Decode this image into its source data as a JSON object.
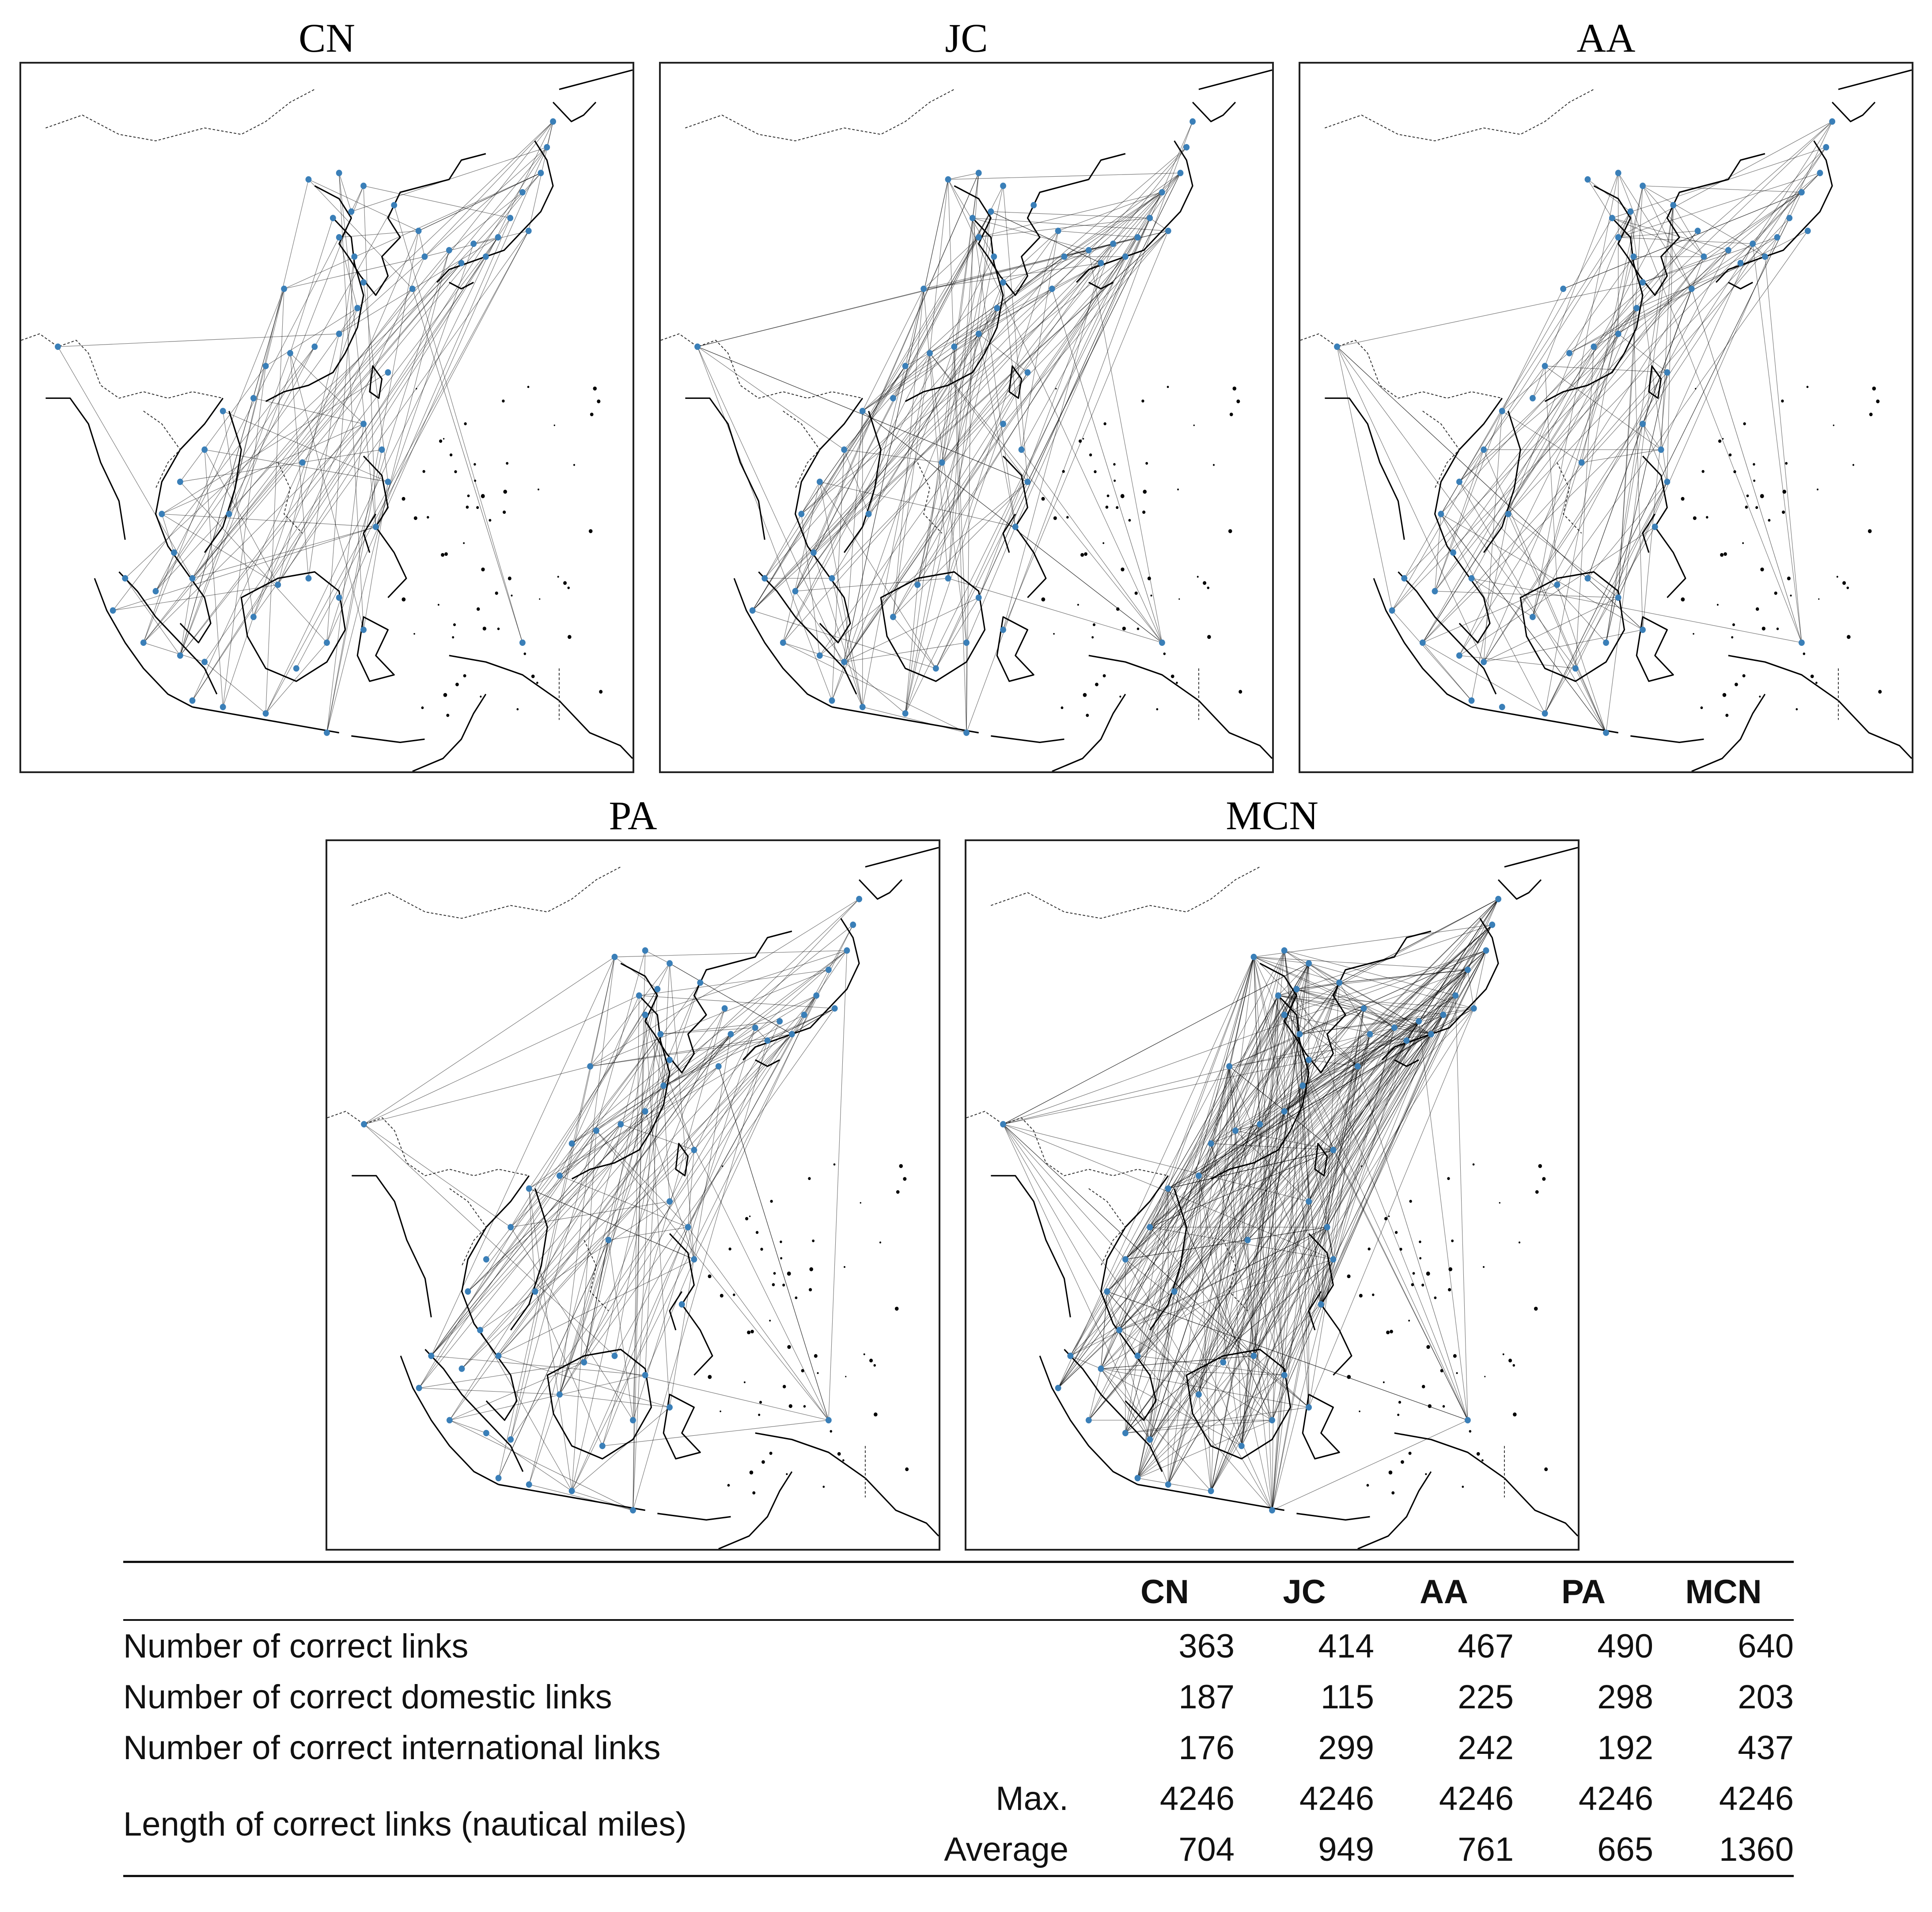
{
  "panels": [
    {
      "id": "cn",
      "title": "CN",
      "density": 110,
      "seed": 3
    },
    {
      "id": "jc",
      "title": "JC",
      "density": 170,
      "seed": 7
    },
    {
      "id": "aa",
      "title": "AA",
      "density": 150,
      "seed": 11
    },
    {
      "id": "pa",
      "title": "PA",
      "density": 160,
      "seed": 17
    },
    {
      "id": "mcn",
      "title": "MCN",
      "density": 420,
      "seed": 23
    }
  ],
  "table": {
    "headers": [
      "CN",
      "JC",
      "AA",
      "PA",
      "MCN"
    ],
    "rows": [
      {
        "label": "Number of correct links",
        "sub": "",
        "values": [
          "363",
          "414",
          "467",
          "490",
          "640"
        ]
      },
      {
        "label": "Number of correct domestic links",
        "sub": "",
        "values": [
          "187",
          "115",
          "225",
          "298",
          "203"
        ]
      },
      {
        "label": "Number of correct international links",
        "sub": "",
        "values": [
          "176",
          "299",
          "242",
          "192",
          "437"
        ]
      }
    ],
    "length_label": "Length of correct links (nautical miles)",
    "length_rows": [
      {
        "sub": "Max.",
        "values": [
          "4246",
          "4246",
          "4246",
          "4246",
          "4246"
        ]
      },
      {
        "sub": "Average",
        "values": [
          "704",
          "949",
          "761",
          "665",
          "1360"
        ]
      }
    ]
  },
  "colors": {
    "node": "#3a7fb8",
    "link": "#000000",
    "coast": "#000000",
    "border": "#222222"
  }
}
